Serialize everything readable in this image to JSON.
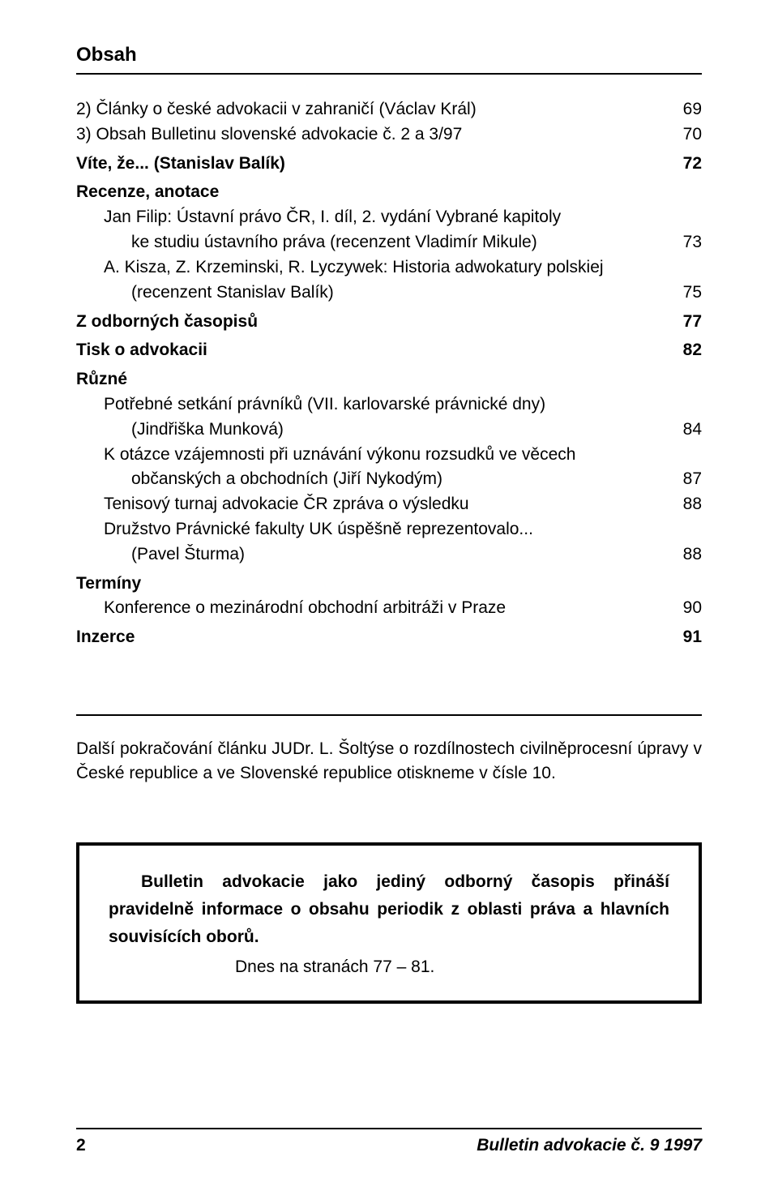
{
  "header": {
    "title": "Obsah"
  },
  "toc": [
    {
      "label": "2) Články o české advokacii v zahraničí (Václav Král)",
      "page": "69",
      "indent": 0,
      "bold": false
    },
    {
      "label": "3) Obsah Bulletinu slovenské advokacie č. 2 a 3/97",
      "page": "70",
      "indent": 0,
      "bold": false
    },
    {
      "label": "Víte, že... (Stanislav Balík)",
      "page": "72",
      "indent": 0,
      "bold": true,
      "gap": true
    },
    {
      "label": "Recenze, anotace",
      "page": "",
      "indent": 0,
      "bold": true,
      "gap": true
    },
    {
      "label": "Jan Filip: Ústavní právo ČR, I. díl, 2. vydání Vybrané kapitoly",
      "page": "",
      "indent": 1,
      "bold": false
    },
    {
      "label": "ke studiu ústavního práva (recenzent Vladimír Mikule)",
      "page": "73",
      "indent": 2,
      "bold": false
    },
    {
      "label": "A. Kisza, Z. Krzeminski, R. Lyczywek: Historia adwokatury polskiej",
      "page": "",
      "indent": 1,
      "bold": false
    },
    {
      "label": "(recenzent Stanislav Balík)",
      "page": "75",
      "indent": 2,
      "bold": false
    },
    {
      "label": "Z odborných časopisů",
      "page": "77",
      "indent": 0,
      "bold": true,
      "gap": true
    },
    {
      "label": "Tisk o advokacii",
      "page": "82",
      "indent": 0,
      "bold": true,
      "gap": true
    },
    {
      "label": "Různé",
      "page": "",
      "indent": 0,
      "bold": true,
      "gap": true
    },
    {
      "label": "Potřebné setkání právníků (VII. karlovarské právnické dny)",
      "page": "",
      "indent": 1,
      "bold": false
    },
    {
      "label": "(Jindřiška Munková)",
      "page": "84",
      "indent": 2,
      "bold": false
    },
    {
      "label": "K otázce vzájemnosti při uznávání výkonu rozsudků ve věcech",
      "page": "",
      "indent": 1,
      "bold": false
    },
    {
      "label": "občanských a obchodních (Jiří Nykodým)",
      "page": "87",
      "indent": 2,
      "bold": false
    },
    {
      "label": "Tenisový turnaj advokacie ČR zpráva o výsledku",
      "page": "88",
      "indent": 1,
      "bold": false
    },
    {
      "label": "Družstvo Právnické fakulty UK úspěšně reprezentovalo...",
      "page": "",
      "indent": 1,
      "bold": false
    },
    {
      "label": "(Pavel Šturma)",
      "page": "88",
      "indent": 2,
      "bold": false
    },
    {
      "label": "Termíny",
      "page": "",
      "indent": 0,
      "bold": true,
      "gap": true
    },
    {
      "label": "Konference o mezinárodní obchodní arbitráži v Praze",
      "page": "90",
      "indent": 1,
      "bold": false
    },
    {
      "label": "Inzerce",
      "page": "91",
      "indent": 0,
      "bold": true,
      "gap": true
    }
  ],
  "note": {
    "text": "Další pokračování článku JUDr. L. Šoltýse o rozdílnostech civilněprocesní úpravy v České republice a ve Slovenské republice otiskneme v čísle 10."
  },
  "box": {
    "main": "Bulletin advokacie jako jediný odborný časopis přináší pravidelně informace o obsahu periodik z oblasti práva a hlavních souvisících oborů.",
    "sub": "Dnes na stranách 77 – 81."
  },
  "footer": {
    "page": "2",
    "publication": "Bulletin advokacie č. 9 1997"
  }
}
